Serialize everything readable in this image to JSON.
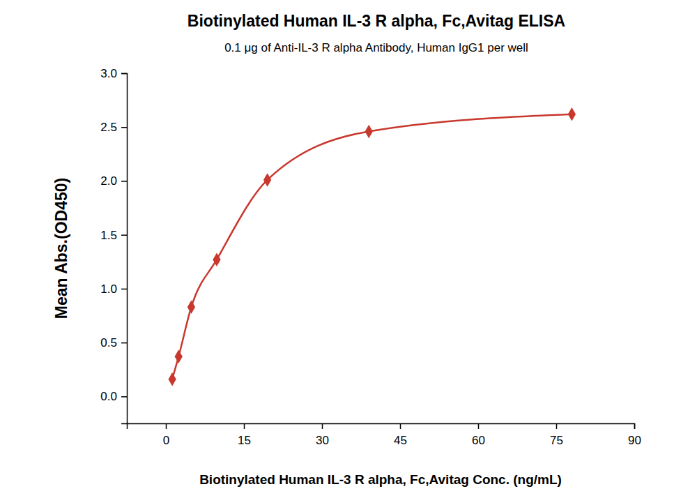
{
  "chart_data": {
    "type": "line",
    "title": "Biotinylated Human IL-3 R alpha, Fc,Avitag ELISA",
    "subtitle": "0.1 μg of Anti-IL-3 R alpha Antibody, Human IgG1 per well",
    "x_label": "Biotinylated Human IL-3 R alpha, Fc,Avitag Conc. (ng/mL)",
    "y_label": "Mean Abs.(OD450)",
    "x": [
      1.22,
      2.44,
      4.88,
      9.77,
      19.5,
      39,
      78
    ],
    "values": [
      0.16,
      0.37,
      0.83,
      1.27,
      2.01,
      2.46,
      2.62
    ],
    "color": "#c8382e",
    "marker": "diamond",
    "line_style": "solid",
    "xlim": [
      -7.5,
      90
    ],
    "xticks": [
      0,
      15,
      30,
      45,
      60,
      75,
      90
    ],
    "ylim": [
      -0.25,
      3.0
    ],
    "yticks": [
      {
        "value": 0,
        "label": "0.0"
      },
      0.5,
      {
        "value": 1,
        "label": "1.0"
      },
      1.5,
      {
        "value": 2,
        "label": "2.0"
      },
      2.5,
      {
        "value": 3,
        "label": "3.0"
      }
    ],
    "grid": false
  }
}
